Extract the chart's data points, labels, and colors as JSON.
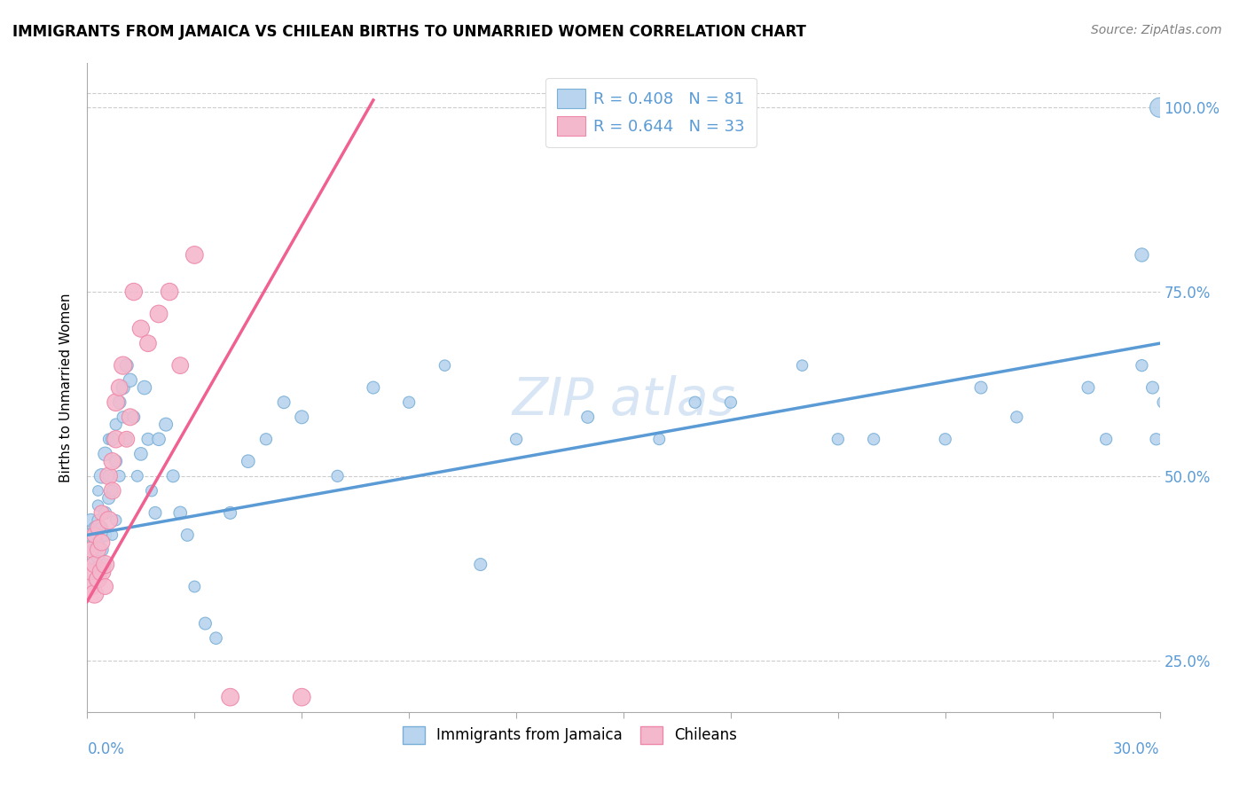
{
  "title": "IMMIGRANTS FROM JAMAICA VS CHILEAN BIRTHS TO UNMARRIED WOMEN CORRELATION CHART",
  "source": "Source: ZipAtlas.com",
  "ylabel": "Births to Unmarried Women",
  "ytick_labels": [
    "25.0%",
    "50.0%",
    "75.0%",
    "100.0%"
  ],
  "legend_label1": "Immigrants from Jamaica",
  "legend_label2": "Chileans",
  "blue_color": "#5b9bd5",
  "pink_color": "#f06090",
  "blue_dot_face": "#b8d4ee",
  "pink_dot_face": "#f4b8cc",
  "blue_dot_edge": "#7ab0d8",
  "pink_dot_edge": "#ee88a8",
  "watermark_color": "#c8daf0",
  "legend_R1": "R = 0.408",
  "legend_N1": "N = 81",
  "legend_R2": "R = 0.644",
  "legend_N2": "N = 33",
  "xlim": [
    0.0,
    0.3
  ],
  "ylim": [
    0.18,
    1.06
  ],
  "yticks": [
    0.25,
    0.5,
    0.75,
    1.0
  ],
  "xticks": [
    0.0,
    0.03,
    0.06,
    0.09,
    0.12,
    0.15,
    0.18,
    0.21,
    0.24,
    0.27,
    0.3
  ],
  "blue_line_x": [
    0.0,
    0.3
  ],
  "blue_line_y": [
    0.42,
    0.68
  ],
  "pink_line_x": [
    0.0,
    0.08
  ],
  "pink_line_y": [
    0.33,
    1.01
  ],
  "blue_pts_x": [
    0.001,
    0.001,
    0.001,
    0.002,
    0.002,
    0.002,
    0.003,
    0.003,
    0.003,
    0.003,
    0.003,
    0.004,
    0.004,
    0.004,
    0.004,
    0.005,
    0.005,
    0.005,
    0.005,
    0.006,
    0.006,
    0.006,
    0.007,
    0.007,
    0.007,
    0.008,
    0.008,
    0.008,
    0.009,
    0.009,
    0.01,
    0.01,
    0.011,
    0.011,
    0.012,
    0.013,
    0.014,
    0.015,
    0.016,
    0.017,
    0.018,
    0.019,
    0.02,
    0.022,
    0.024,
    0.026,
    0.028,
    0.03,
    0.033,
    0.036,
    0.04,
    0.045,
    0.05,
    0.055,
    0.06,
    0.07,
    0.08,
    0.09,
    0.1,
    0.11,
    0.12,
    0.14,
    0.16,
    0.18,
    0.2,
    0.22,
    0.25,
    0.28,
    0.295,
    0.298,
    0.299,
    0.3,
    0.301,
    0.302,
    0.302,
    0.295,
    0.285,
    0.26,
    0.24,
    0.21,
    0.17
  ],
  "blue_pts_y": [
    0.42,
    0.38,
    0.44,
    0.4,
    0.43,
    0.36,
    0.41,
    0.39,
    0.44,
    0.46,
    0.48,
    0.4,
    0.43,
    0.37,
    0.5,
    0.42,
    0.38,
    0.45,
    0.53,
    0.5,
    0.47,
    0.55,
    0.55,
    0.48,
    0.42,
    0.52,
    0.57,
    0.44,
    0.6,
    0.5,
    0.62,
    0.58,
    0.65,
    0.55,
    0.63,
    0.58,
    0.5,
    0.53,
    0.62,
    0.55,
    0.48,
    0.45,
    0.55,
    0.57,
    0.5,
    0.45,
    0.42,
    0.35,
    0.3,
    0.28,
    0.45,
    0.52,
    0.55,
    0.6,
    0.58,
    0.5,
    0.62,
    0.6,
    0.65,
    0.38,
    0.55,
    0.58,
    0.55,
    0.6,
    0.65,
    0.55,
    0.62,
    0.62,
    0.8,
    0.62,
    0.55,
    1.0,
    0.6,
    0.68,
    0.65,
    0.65,
    0.55,
    0.58,
    0.55,
    0.55,
    0.6
  ],
  "blue_pts_s": [
    120,
    100,
    110,
    130,
    90,
    100,
    100,
    115,
    90,
    80,
    70,
    120,
    100,
    80,
    140,
    110,
    90,
    105,
    125,
    90,
    100,
    80,
    110,
    90,
    75,
    100,
    90,
    80,
    110,
    85,
    120,
    90,
    115,
    85,
    120,
    100,
    85,
    110,
    125,
    100,
    85,
    100,
    110,
    115,
    100,
    110,
    100,
    85,
    100,
    95,
    100,
    110,
    90,
    100,
    115,
    90,
    100,
    90,
    80,
    100,
    90,
    100,
    85,
    90,
    80,
    90,
    100,
    100,
    120,
    100,
    90,
    250,
    90,
    90,
    90,
    90,
    90,
    90,
    90,
    90,
    90
  ],
  "pink_pts_x": [
    0.001,
    0.001,
    0.001,
    0.002,
    0.002,
    0.002,
    0.003,
    0.003,
    0.003,
    0.004,
    0.004,
    0.004,
    0.005,
    0.005,
    0.006,
    0.006,
    0.007,
    0.007,
    0.008,
    0.008,
    0.009,
    0.01,
    0.011,
    0.012,
    0.013,
    0.015,
    0.017,
    0.02,
    0.023,
    0.026,
    0.03,
    0.04,
    0.06
  ],
  "pink_pts_y": [
    0.35,
    0.37,
    0.4,
    0.34,
    0.38,
    0.42,
    0.36,
    0.4,
    0.43,
    0.37,
    0.41,
    0.45,
    0.38,
    0.35,
    0.44,
    0.5,
    0.52,
    0.48,
    0.55,
    0.6,
    0.62,
    0.65,
    0.55,
    0.58,
    0.75,
    0.7,
    0.68,
    0.72,
    0.75,
    0.65,
    0.8,
    0.2,
    0.2
  ],
  "pink_pts_s": [
    200,
    180,
    160,
    220,
    180,
    160,
    200,
    170,
    155,
    220,
    180,
    150,
    210,
    165,
    210,
    200,
    190,
    185,
    195,
    200,
    180,
    210,
    165,
    185,
    195,
    190,
    180,
    200,
    195,
    180,
    200,
    200,
    200
  ]
}
